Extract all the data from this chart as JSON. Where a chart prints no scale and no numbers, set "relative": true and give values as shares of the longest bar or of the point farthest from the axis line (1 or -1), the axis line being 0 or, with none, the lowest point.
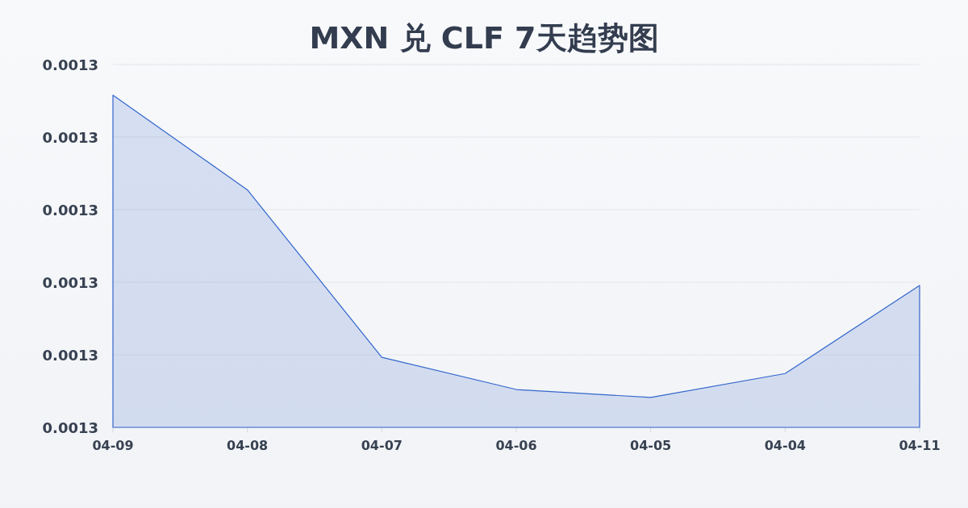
{
  "chart_data": {
    "type": "area",
    "title": "MXN 兑 CLF 7天趋势图",
    "categories": [
      "04-09",
      "04-08",
      "04-07",
      "04-06",
      "04-05",
      "04-04",
      "04-11"
    ],
    "relative": true,
    "annotations": [
      "0.0013",
      "0.0013",
      "0.0013",
      "0.0013",
      "0.0013",
      "0.0013"
    ],
    "series": [
      {
        "color": "#3366cc",
        "values": [
          1,
          0.715,
          0.211,
          0.114,
          0.09,
          0.162,
          0.427
        ]
      }
    ],
    "grid": "y"
  }
}
